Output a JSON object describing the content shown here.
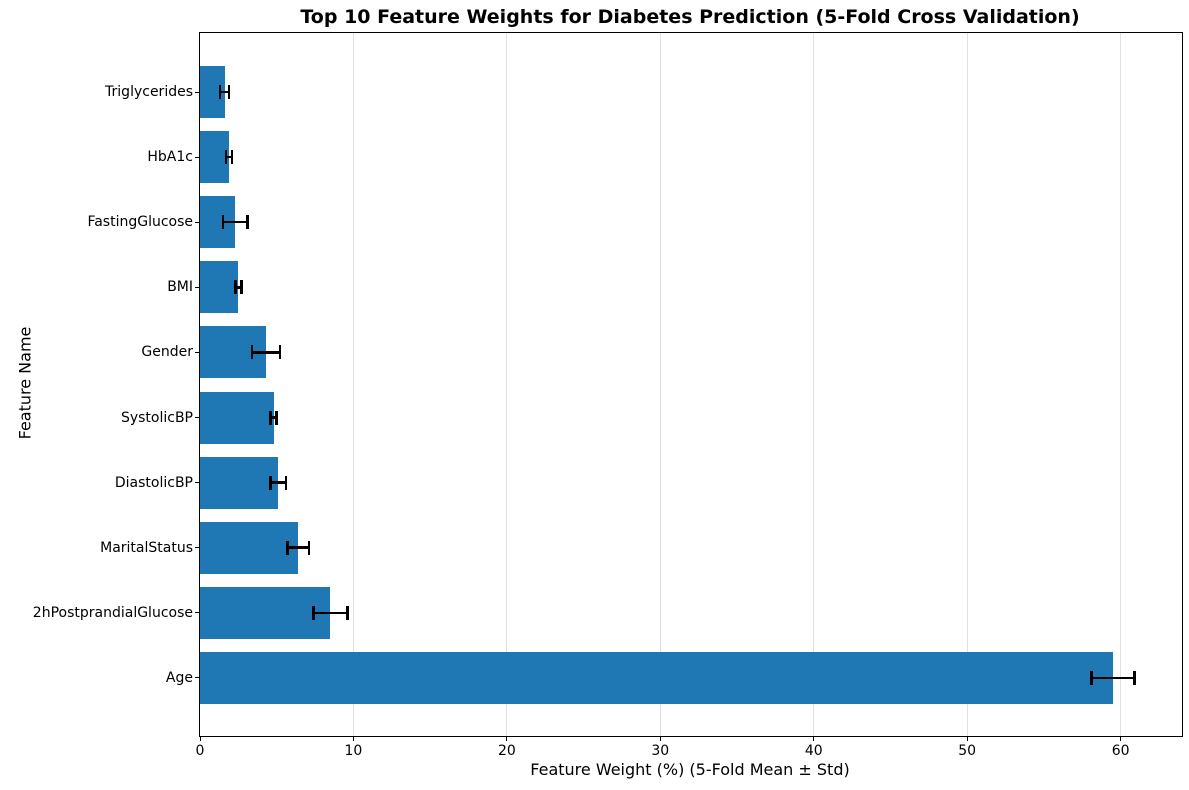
{
  "chart_data": {
    "type": "bar",
    "orientation": "horizontal",
    "title": "Top 10 Feature Weights for Diabetes Prediction (5-Fold Cross Validation)",
    "xlabel": "Feature Weight (%) (5-Fold Mean ± Std)",
    "ylabel": "Feature Name",
    "categories_top_to_bottom": [
      "Triglycerides",
      "HbA1c",
      "FastingGlucose",
      "BMI",
      "Gender",
      "SystolicBP",
      "DiastolicBP",
      "MaritalStatus",
      "2hPostprandialGlucose",
      "Age"
    ],
    "series": [
      {
        "name": "5-Fold Mean Feature Weight (%)",
        "values": [
          1.6,
          1.9,
          2.3,
          2.5,
          4.3,
          4.8,
          5.1,
          6.4,
          8.5,
          59.5
        ]
      },
      {
        "name": "5-Fold Std (error bar)",
        "values": [
          0.3,
          0.2,
          0.8,
          0.2,
          0.9,
          0.2,
          0.5,
          0.7,
          1.1,
          1.4
        ]
      }
    ],
    "xticks": [
      0,
      10,
      20,
      30,
      40,
      50,
      60
    ],
    "xlim": [
      0,
      64
    ],
    "grid": true,
    "grid_color": "#e0e0e0",
    "bar_color": "#1f77b4",
    "error_bar_color": "#000000",
    "frame_color": "#000000",
    "background_color": "#ffffff",
    "legend_position": "none"
  }
}
